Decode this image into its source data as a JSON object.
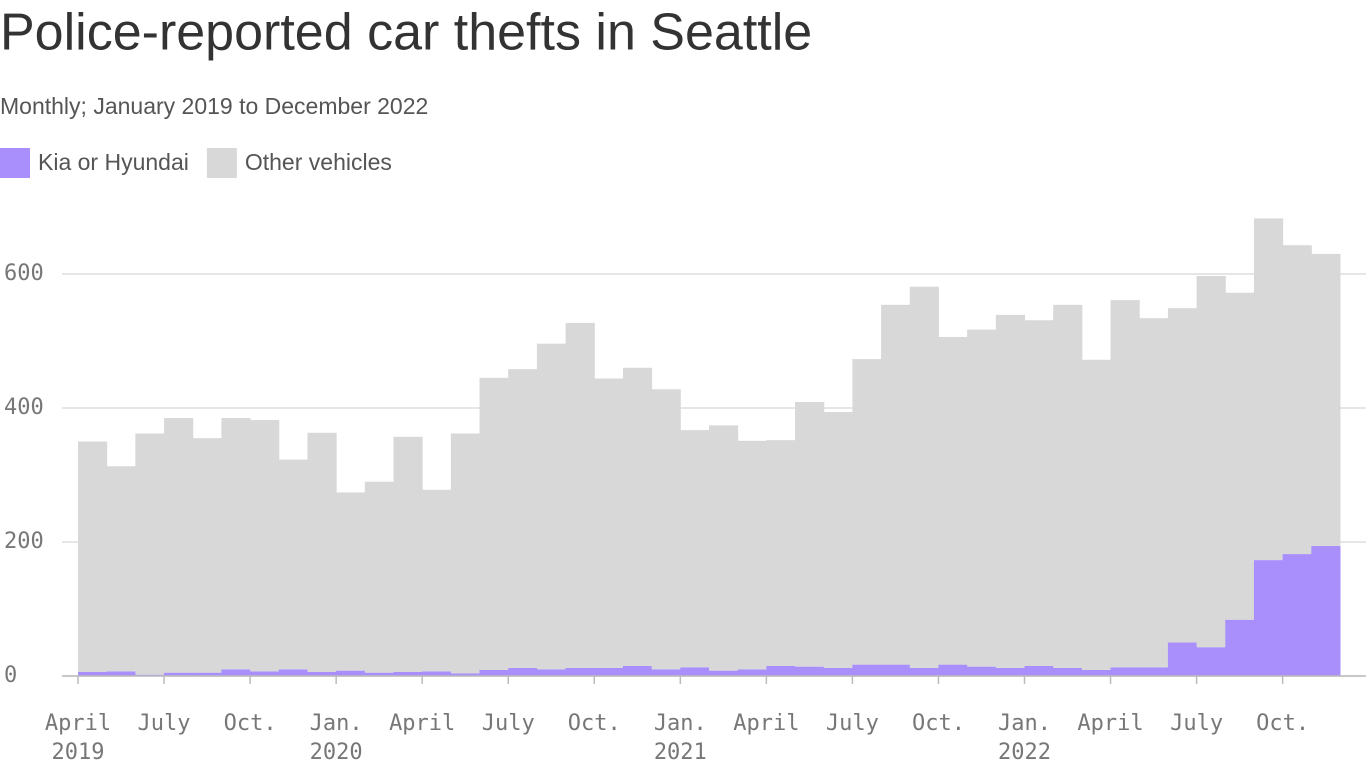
{
  "chart_data": {
    "type": "stacked-bar-step",
    "title": "Police-reported car thefts in Seattle",
    "subtitle": "Monthly; January 2019 to December 2022",
    "x": [
      "2019-04",
      "2019-05",
      "2019-06",
      "2019-07",
      "2019-08",
      "2019-09",
      "2019-10",
      "2019-11",
      "2019-12",
      "2020-01",
      "2020-02",
      "2020-03",
      "2020-04",
      "2020-05",
      "2020-06",
      "2020-07",
      "2020-08",
      "2020-09",
      "2020-10",
      "2020-11",
      "2020-12",
      "2021-01",
      "2021-02",
      "2021-03",
      "2021-04",
      "2021-05",
      "2021-06",
      "2021-07",
      "2021-08",
      "2021-09",
      "2021-10",
      "2021-11",
      "2021-12",
      "2022-01",
      "2022-02",
      "2022-03",
      "2022-04",
      "2022-05",
      "2022-06",
      "2022-07",
      "2022-08",
      "2022-09",
      "2022-10",
      "2022-11"
    ],
    "series": [
      {
        "name": "Kia or Hyundai",
        "color": "#a98ffb",
        "values": [
          6,
          7,
          2,
          5,
          5,
          10,
          7,
          10,
          6,
          8,
          5,
          6,
          7,
          4,
          9,
          12,
          10,
          12,
          12,
          15,
          10,
          13,
          8,
          10,
          15,
          14,
          12,
          17,
          17,
          12,
          17,
          14,
          12,
          15,
          12,
          9,
          13,
          13,
          50,
          43,
          84,
          173,
          182,
          194
        ]
      },
      {
        "name": "Other vehicles",
        "color": "#d8d8d8",
        "values": [
          344,
          306,
          360,
          380,
          350,
          375,
          375,
          313,
          357,
          266,
          285,
          351,
          271,
          358,
          436,
          446,
          486,
          515,
          432,
          445,
          418,
          354,
          366,
          341,
          337,
          395,
          382,
          456,
          537,
          569,
          489,
          503,
          527,
          516,
          542,
          463,
          548,
          521,
          499,
          554,
          488,
          510,
          461,
          436
        ]
      }
    ],
    "xlim": [
      "2019-04",
      "2022-12"
    ],
    "xticks": [
      {
        "value": "2019-04",
        "label": "April",
        "year": "2019"
      },
      {
        "value": "2019-07",
        "label": "July"
      },
      {
        "value": "2019-10",
        "label": "Oct."
      },
      {
        "value": "2020-01",
        "label": "Jan.",
        "year": "2020"
      },
      {
        "value": "2020-04",
        "label": "April"
      },
      {
        "value": "2020-07",
        "label": "July"
      },
      {
        "value": "2020-10",
        "label": "Oct."
      },
      {
        "value": "2021-01",
        "label": "Jan.",
        "year": "2021"
      },
      {
        "value": "2021-04",
        "label": "April"
      },
      {
        "value": "2021-07",
        "label": "July"
      },
      {
        "value": "2021-10",
        "label": "Oct."
      },
      {
        "value": "2022-01",
        "label": "Jan.",
        "year": "2022"
      },
      {
        "value": "2022-04",
        "label": "April"
      },
      {
        "value": "2022-07",
        "label": "July"
      },
      {
        "value": "2022-10",
        "label": "Oct."
      }
    ],
    "ylim": [
      0,
      700
    ],
    "yticks": [
      0,
      200,
      400,
      600
    ],
    "grid": true
  }
}
